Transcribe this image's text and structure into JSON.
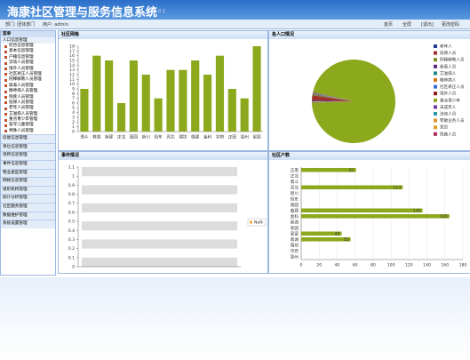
{
  "header": {
    "title": "海康社区管理与服务信息系统",
    "version": "V1.0.1",
    "department": "部门: 团体部门",
    "user": "用户: admin",
    "links": [
      "首页",
      "全屏",
      "[退出]",
      "更改密码"
    ]
  },
  "sidebar": {
    "title": "菜单",
    "group": "人口信息管理",
    "items": [
      "综合信息管理",
      "基本信息管理",
      "户籍信息管理",
      "流动人员管理",
      "境外人员管理",
      "社区矫正人员管理",
      "刑释解教人员管理",
      "吸毒人员管理",
      "精神病人员管理",
      "残疾人员管理",
      "低保人员管理",
      "老年人员管理",
      "艾滋病人员管理",
      "重点青少年管理",
      "留守儿童管理",
      "特殊人员管理"
    ],
    "sections": [
      "房屋信息管理",
      "单位信息管理",
      "场所信息管理",
      "事件信息管理",
      "物业类型管理",
      "网格信息管理",
      "组织机构管理",
      "统计分析管理",
      "社区服务管理",
      "数据维护管理",
      "系统设置管理"
    ]
  },
  "chart_data": [
    {
      "type": "bar",
      "title": "社区网格",
      "categories": [
        "翡斗",
        "教湖",
        "新建",
        "正北",
        "富园",
        "新川",
        "恒东",
        "亮北",
        "瑞坊",
        "临建",
        "金科",
        "学府",
        "正田",
        "恩州",
        "星园"
      ],
      "values": [
        9,
        16,
        15,
        6,
        15,
        12,
        7,
        13,
        13,
        15,
        12,
        16,
        9,
        7,
        18
      ],
      "color": "#8ca81c",
      "ylim": [
        0,
        18
      ],
      "yticks": [
        0,
        1,
        2,
        3,
        4,
        5,
        6,
        7,
        8,
        9,
        10,
        11,
        12,
        13,
        14,
        15,
        16,
        17,
        18
      ]
    },
    {
      "type": "pie",
      "title": "各人口情况",
      "categories": [
        "老年人",
        "低保人员",
        "刑释解教人员",
        "吸毒人员",
        "艾滋病人",
        "精神病人",
        "社区矫正人员",
        "境外人员",
        "重点青少年",
        "未成年人",
        "流动人员",
        "零散业务人员",
        "党员",
        "残疾人员"
      ],
      "values": [
        0.3,
        2,
        0.3,
        0.2,
        0.2,
        0.2,
        0.2,
        0.2,
        96,
        0.1,
        0.1,
        0.1,
        0.1,
        0.1
      ],
      "colors": [
        "#1f3a8a",
        "#a0302a",
        "#7a8a1c",
        "#5a2a7a",
        "#1a8a8a",
        "#d07a1a",
        "#3a6ad0",
        "#8a1a1a",
        "#8ca81c",
        "#6a3aa0",
        "#2a9aaa",
        "#e0902a",
        "#e0a020",
        "#b02a5a"
      ]
    },
    {
      "type": "bar",
      "title": "事件情况",
      "categories": [],
      "series": [
        {
          "name": "NaN",
          "color": "#f0a830",
          "values": []
        }
      ],
      "ylim": [
        0,
        1.1
      ],
      "yticks": [
        0,
        0.1,
        0.2,
        0.3,
        0.4,
        0.5,
        0.6,
        0.7,
        0.8,
        0.9,
        1,
        1.1
      ],
      "bands": true
    },
    {
      "type": "hbar",
      "title": "社区户数",
      "categories": [
        "正南",
        "正北",
        "翡斗",
        "亮北",
        "新川",
        "恒东",
        "富园",
        "临建",
        "金科",
        "新湖",
        "星园",
        "富富",
        "翡湖",
        "瑞坊",
        "学府",
        "恩州"
      ],
      "values": [
        61,
        0,
        0,
        113,
        0,
        0,
        0,
        135,
        165,
        0,
        0,
        45,
        55,
        0,
        0,
        0
      ],
      "color": "#8ca81c",
      "xlim": [
        0,
        180
      ],
      "xticks": [
        0,
        20,
        40,
        60,
        80,
        100,
        120,
        140,
        160,
        180
      ]
    }
  ]
}
